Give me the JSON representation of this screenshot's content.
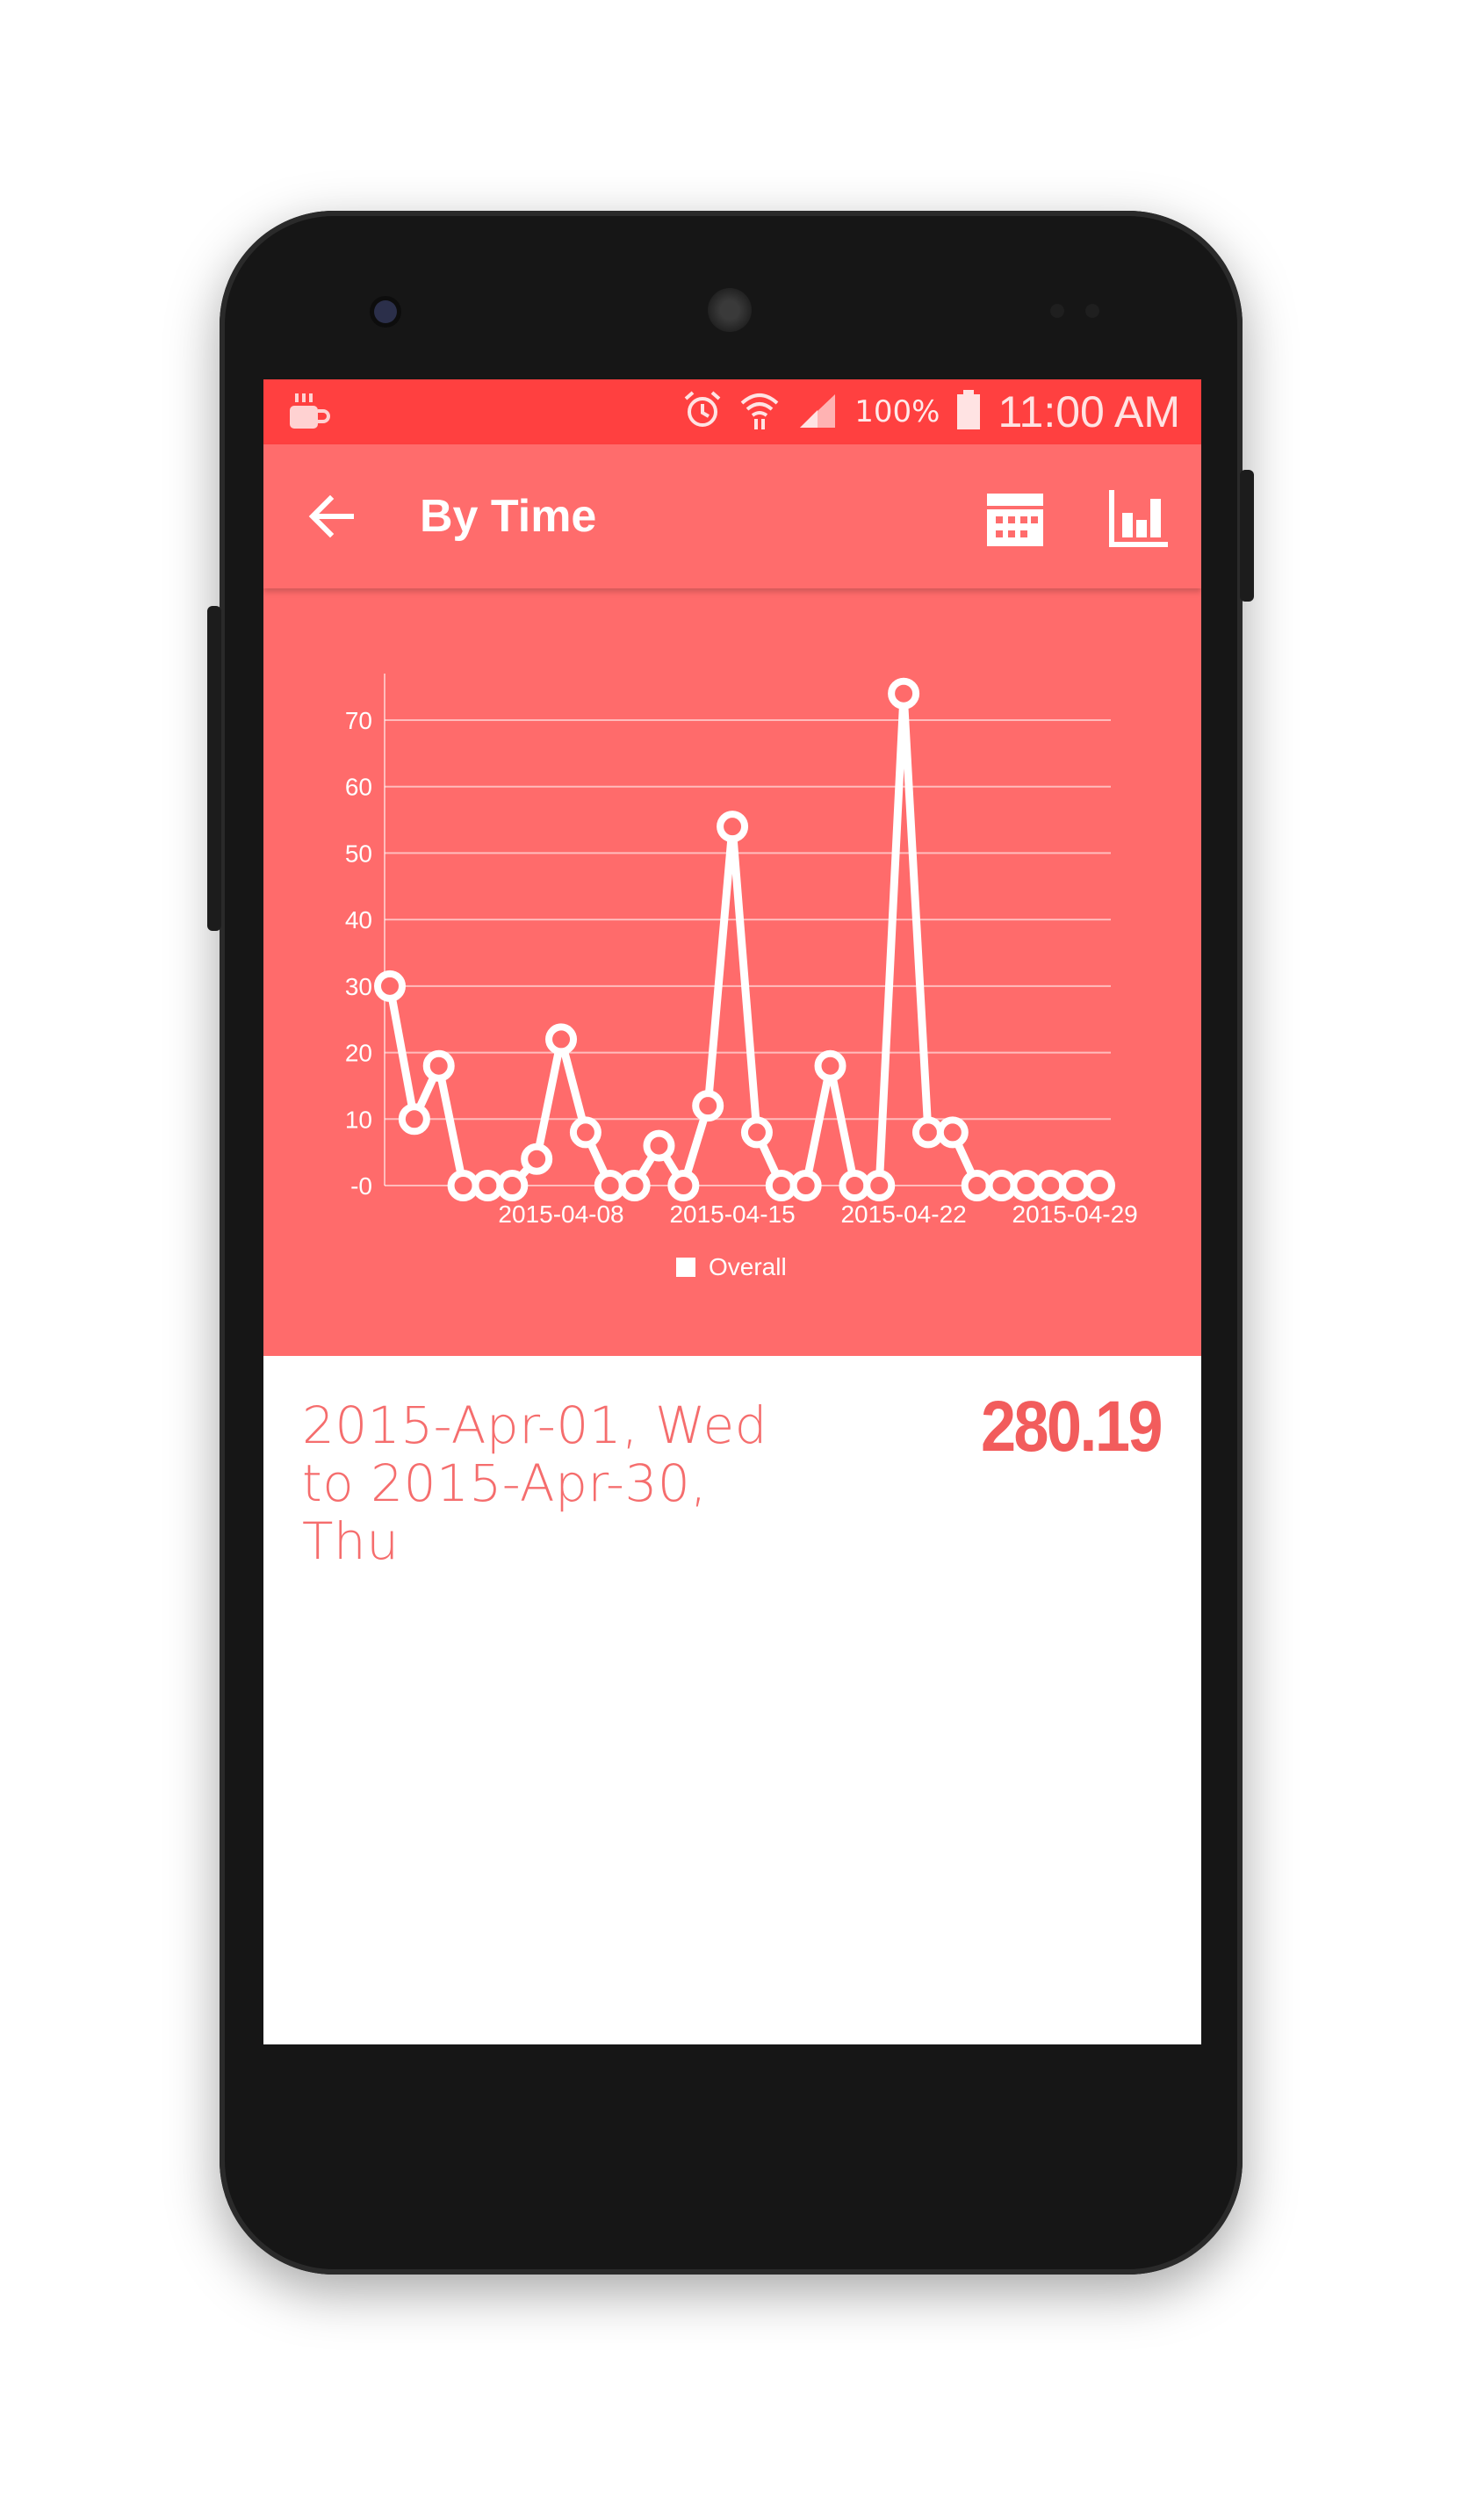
{
  "status_bar": {
    "battery": "100%",
    "time": "11:00 AM",
    "icons": [
      "coffee-icon",
      "alarm-icon",
      "wifi-icon",
      "signal-icon",
      "battery-icon"
    ]
  },
  "app_bar": {
    "title": "By Time",
    "actions": [
      "calendar-icon",
      "bar-chart-icon"
    ],
    "background": "#ff6c6c",
    "status_color": "#ff4040"
  },
  "chart_data": {
    "type": "line",
    "x": [
      "2015-04-01",
      "2015-04-02",
      "2015-04-03",
      "2015-04-04",
      "2015-04-05",
      "2015-04-06",
      "2015-04-07",
      "2015-04-08",
      "2015-04-09",
      "2015-04-10",
      "2015-04-11",
      "2015-04-12",
      "2015-04-13",
      "2015-04-14",
      "2015-04-15",
      "2015-04-16",
      "2015-04-17",
      "2015-04-18",
      "2015-04-19",
      "2015-04-20",
      "2015-04-21",
      "2015-04-22",
      "2015-04-23",
      "2015-04-24",
      "2015-04-25",
      "2015-04-26",
      "2015-04-27",
      "2015-04-28",
      "2015-04-29",
      "2015-04-30"
    ],
    "series": [
      {
        "name": "Overall",
        "values": [
          30,
          10,
          18,
          0,
          0,
          0,
          4,
          22,
          8,
          0,
          0,
          6,
          0,
          12,
          54,
          8,
          0,
          0,
          18,
          0,
          0,
          74,
          8,
          8,
          0,
          0,
          0,
          0,
          0,
          0
        ]
      }
    ],
    "y_ticks": [
      "-0",
      "10",
      "20",
      "30",
      "40",
      "50",
      "60",
      "70"
    ],
    "x_tick_labels": [
      "2015-04-08",
      "2015-04-15",
      "2015-04-22",
      "2015-04-29"
    ],
    "ylim": [
      0,
      75
    ],
    "grid": true,
    "legend": "bottom-center",
    "color": "#ffffff"
  },
  "summary": {
    "date_range_lines": [
      "2015-Apr-01, Wed",
      "to 2015-Apr-30,",
      "Thu"
    ],
    "total": "280.19",
    "accent": "#f56d6d"
  }
}
